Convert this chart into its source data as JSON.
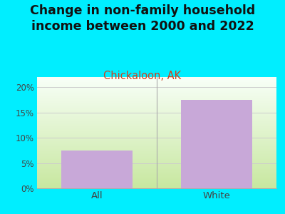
{
  "title": "Change in non-family household\nincome between 2000 and 2022",
  "subtitle": "Chickaloon, AK",
  "categories": [
    "All",
    "White"
  ],
  "values": [
    7.5,
    17.5
  ],
  "bar_color": "#c8a8d8",
  "background_outer": "#00eeff",
  "ylim": [
    0,
    22
  ],
  "yticks": [
    0,
    5,
    10,
    15,
    20
  ],
  "ytick_labels": [
    "0%",
    "5%",
    "10%",
    "15%",
    "20%"
  ],
  "title_fontsize": 12.5,
  "subtitle_fontsize": 10.5,
  "subtitle_color": "#cc4422",
  "title_color": "#111111",
  "gradient_bottom": "#c8e8a0",
  "gradient_top": "#f8fff8",
  "grid_color": "#cccccc",
  "tick_color": "#444444",
  "separator_color": "#aaaaaa"
}
